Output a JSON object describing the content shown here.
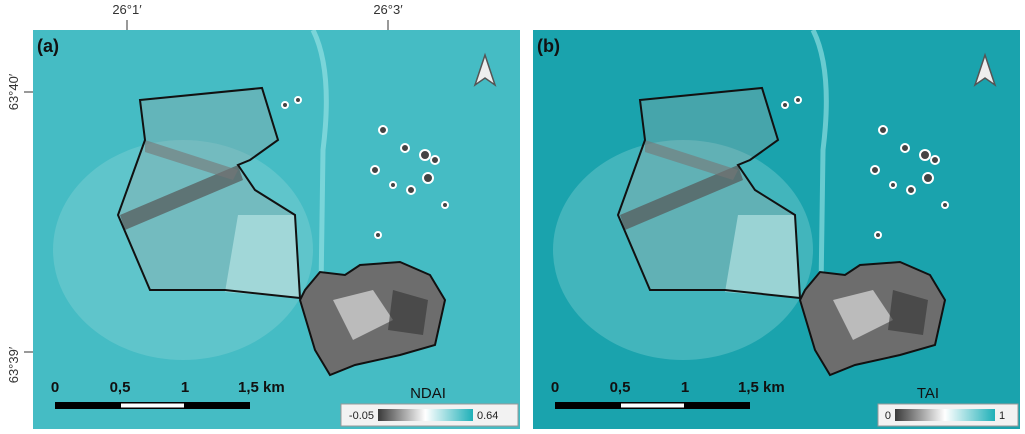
{
  "axes": {
    "top": [
      "26°1′",
      "26°3′"
    ],
    "left": [
      "63°40′",
      "63°39′"
    ]
  },
  "panels": [
    {
      "label": "(a)",
      "scale": [
        "0",
        "0,5",
        "1",
        "1,5 km"
      ],
      "legend": {
        "title": "NDAI",
        "min": "-0.05",
        "max": "0.64"
      }
    },
    {
      "label": "(b)",
      "scale": [
        "0",
        "0,5",
        "1",
        "1,5 km"
      ],
      "legend": {
        "title": "TAI",
        "min": "0",
        "max": "1"
      }
    }
  ]
}
